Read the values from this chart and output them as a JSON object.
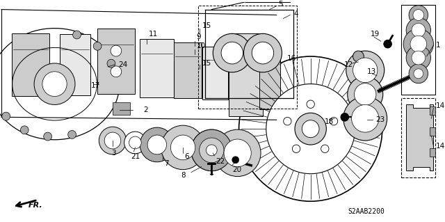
{
  "bg_color": "#ffffff",
  "part_code": "S2AAB2200",
  "line_color": "#000000",
  "gray_light": "#cccccc",
  "gray_mid": "#aaaaaa",
  "gray_dark": "#888888"
}
